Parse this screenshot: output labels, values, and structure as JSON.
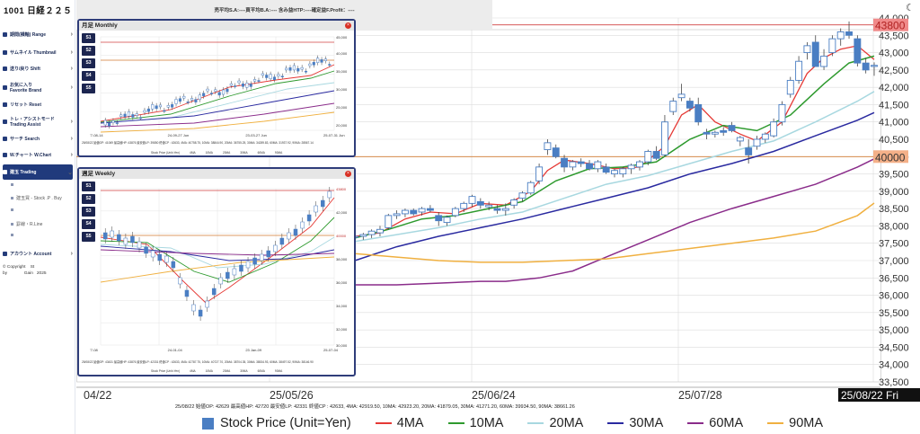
{
  "app": {
    "title": "1001 日経２２５"
  },
  "header": {
    "summary": "売平均S.A:----買平均B.A:---- 含み益HTP:----確定益F.Profit：----",
    "theme_icon": "moon-icon"
  },
  "sidebar": {
    "items": [
      {
        "id": "range",
        "label": "期間(横軸) Range",
        "icon": "range-icon",
        "chevron": "›"
      },
      {
        "id": "thumbnail",
        "label": "サムネイル Thumbnail",
        "icon": "thumbnail-icon",
        "chevron": "›"
      },
      {
        "id": "shift",
        "label": "送り/戻り Shift",
        "icon": "shift-icon",
        "chevron": "›"
      },
      {
        "id": "favorite",
        "label": "お気に入り\nFavorite  Brand",
        "icon": "favorite-icon",
        "chevron": "›"
      },
      {
        "id": "reset",
        "label": "リセット Reset",
        "icon": "reset-icon",
        "chevron": ""
      },
      {
        "id": "trade-assist",
        "label": "トレ・アシストモード\nTrading Assist",
        "icon": "assist-icon",
        "chevron": "›"
      },
      {
        "id": "search",
        "label": "サーチ Search",
        "icon": "search-icon",
        "chevron": "›"
      },
      {
        "id": "wchart",
        "label": "W.チャート W.Chart",
        "icon": "chart-icon",
        "chevron": "›"
      },
      {
        "id": "trading",
        "label": "建玉 Trading",
        "icon": "trading-icon",
        "chevron": "⌄"
      },
      {
        "id": "account",
        "label": "アカウント Account",
        "icon": "account-icon",
        "chevron": "›"
      }
    ],
    "sub_items": [
      {
        "label": ""
      },
      {
        "label": "建玉買 - Stock .P . Buy"
      },
      {
        "label": ""
      },
      {
        "label": "罫線・R.Line"
      },
      {
        "label": ""
      }
    ],
    "copyright": "© Copyright    St\nby              Gain   2025"
  },
  "main_chart": {
    "footer_text": "25/08/22 始値OP: 42629  最高値HP:  42720 最安値LP:  42331  終値CP :  42633, 4MA: 42919.50, 10MA: 42923.20, 20MA: 41879.05, 30MA: 41271.20, 60MA: 39934.50, 90MA: 38661.26",
    "current_date": "25/08/22 Fri",
    "price_marker": "43800",
    "level_marker": "40000"
  },
  "panels": {
    "monthly": {
      "title": "月足 Monthly",
      "buttons": [
        "S1",
        "S2",
        "S3",
        "S4",
        "S5"
      ],
      "meta": "25/08/22 始値OP: 41069  最高値HP:  43876 最安値LP:  39850  終値CP :  42633, 4MA: 40758.75, 10MA: 38844.90, 20MA: 36755.25, 30MA: 34289.83, 60MA: 31937.92, 90MA: 28567.14",
      "x_labels": [
        "'7-08-14",
        "24-09-27 Jun",
        "23-03-27 Jun",
        "25-07-31 Jun"
      ],
      "y_labels": [
        "45,000",
        "40,000",
        "35,000",
        "30,000",
        "25,000",
        "20,000"
      ]
    },
    "weekly": {
      "title": "週足 Weekly",
      "buttons": [
        "S1",
        "S2",
        "S3",
        "S4",
        "S5"
      ],
      "meta": "25/08/22 始値OP: 43431  最高値HP:  43876 最安値LP:  42331  終値CP :  42633, 4MA: 42787.75, 10MA: 40727.70, 20MA: 38704.35, 30MA: 38534.93, 60MA: 38497.52, 90MA: 38146.90",
      "x_labels": [
        "'7-08",
        "24-01-04",
        "23 Jan-09",
        "25-07-04"
      ],
      "y_labels": [
        "43800",
        "42,000",
        "40000",
        "38,000",
        "36,000",
        "34,000",
        "32,000",
        "30,000"
      ]
    }
  },
  "legend": [
    {
      "label": "Stock Price (Unit=Yen)",
      "type": "box",
      "color": "#4a7ec3"
    },
    {
      "label": "4MA",
      "type": "line",
      "color": "#e53935"
    },
    {
      "label": "10MA",
      "type": "line",
      "color": "#2e9a2e"
    },
    {
      "label": "20MA",
      "type": "line",
      "color": "#a8d8e0"
    },
    {
      "label": "30MA",
      "type": "line",
      "color": "#2a2aa0"
    },
    {
      "label": "60MA",
      "type": "line",
      "color": "#8a2c8a"
    },
    {
      "label": "90MA",
      "type": "line",
      "color": "#f0b040"
    }
  ],
  "mini_legend": [
    "Stock Price (Unit=Yen)",
    "4MA",
    "10MA",
    "20MA",
    "30MA",
    "60MA",
    "90MA"
  ],
  "chart_data": {
    "type": "candlestick",
    "x_tick_labels": [
      "04/22",
      "25/05/26",
      "25/06/24",
      "25/07/28"
    ],
    "y_tick_labels": [
      "33,500",
      "34,000",
      "34,500",
      "35,000",
      "35,500",
      "36,000",
      "36,500",
      "37,000",
      "37,500",
      "38,000",
      "38,500",
      "39,000",
      "39,500",
      "40,000",
      "40,500",
      "41,000",
      "41,500",
      "42,000",
      "42,500",
      "43,000",
      "43,500",
      "44,000"
    ],
    "ylim": [
      33500,
      44000
    ],
    "reference_lines": [
      43800,
      40000
    ],
    "candles": [
      [
        37700,
        37800,
        37600,
        37700
      ],
      [
        37700,
        37800,
        37600,
        37750
      ],
      [
        37750,
        37900,
        37650,
        37850
      ],
      [
        37800,
        38000,
        37700,
        37900
      ],
      [
        37950,
        38350,
        37900,
        38300
      ],
      [
        38300,
        38450,
        38200,
        38350
      ],
      [
        38350,
        38500,
        38250,
        38450
      ],
      [
        38450,
        38500,
        38300,
        38350
      ],
      [
        38400,
        38550,
        38300,
        38500
      ],
      [
        38500,
        38600,
        38400,
        38450
      ],
      [
        38300,
        38400,
        38000,
        38150
      ],
      [
        38100,
        38300,
        38000,
        38250
      ],
      [
        38300,
        38550,
        38250,
        38500
      ],
      [
        38500,
        38700,
        38400,
        38650
      ],
      [
        38650,
        38900,
        38550,
        38850
      ],
      [
        38700,
        38800,
        38500,
        38600
      ],
      [
        38550,
        38700,
        38450,
        38600
      ],
      [
        38500,
        38600,
        38350,
        38450
      ],
      [
        38450,
        38650,
        38300,
        38500
      ],
      [
        38600,
        38800,
        38500,
        38750
      ],
      [
        38800,
        39000,
        38700,
        38950
      ],
      [
        38950,
        39300,
        38900,
        39250
      ],
      [
        39300,
        39800,
        39200,
        39700
      ],
      [
        40200,
        40500,
        40050,
        40400
      ],
      [
        40250,
        40350,
        39950,
        40000
      ],
      [
        39950,
        40050,
        39550,
        39700
      ],
      [
        39700,
        39900,
        39600,
        39850
      ],
      [
        39850,
        39950,
        39700,
        39800
      ],
      [
        39800,
        39900,
        39600,
        39650
      ],
      [
        39650,
        39900,
        39550,
        39850
      ],
      [
        39700,
        39800,
        39500,
        39550
      ],
      [
        39500,
        39650,
        39400,
        39600
      ],
      [
        39500,
        39700,
        39400,
        39650
      ],
      [
        39650,
        39800,
        39500,
        39750
      ],
      [
        39700,
        39900,
        39600,
        39850
      ],
      [
        39850,
        40200,
        39750,
        40150
      ],
      [
        40150,
        40300,
        39900,
        39950
      ],
      [
        40050,
        41200,
        40000,
        41000
      ],
      [
        41300,
        41700,
        41200,
        41600
      ],
      [
        41700,
        42100,
        41600,
        41800
      ],
      [
        41600,
        41700,
        41300,
        41400
      ],
      [
        41500,
        41700,
        40900,
        41000
      ],
      [
        40700,
        40800,
        40500,
        40650
      ],
      [
        40650,
        40750,
        40550,
        40700
      ],
      [
        40750,
        40850,
        40600,
        40700
      ],
      [
        40900,
        41000,
        40700,
        40750
      ],
      [
        40450,
        40600,
        40300,
        40550
      ],
      [
        40250,
        40500,
        39800,
        40050
      ],
      [
        40300,
        40600,
        40200,
        40500
      ],
      [
        40500,
        40700,
        40400,
        40650
      ],
      [
        40600,
        41100,
        40550,
        41000
      ],
      [
        41000,
        41600,
        40900,
        41500
      ],
      [
        41800,
        42300,
        41700,
        42200
      ],
      [
        42200,
        42900,
        42100,
        42750
      ],
      [
        43000,
        43300,
        42800,
        43200
      ],
      [
        43300,
        43500,
        42700,
        42600
      ],
      [
        42600,
        43100,
        42500,
        42900
      ],
      [
        43000,
        43500,
        42900,
        43400
      ],
      [
        43400,
        43700,
        43200,
        43600
      ],
      [
        43600,
        43900,
        43400,
        43500
      ],
      [
        43400,
        43500,
        42600,
        42700
      ],
      [
        42700,
        42850,
        42400,
        42500
      ],
      [
        42629,
        42720,
        42331,
        42633
      ]
    ],
    "ma_series": [
      {
        "name": "4MA",
        "color": "#e53935",
        "values": [
          [
            0,
            37700
          ],
          [
            3,
            37800
          ],
          [
            6,
            38200
          ],
          [
            9,
            38400
          ],
          [
            12,
            38350
          ],
          [
            15,
            38650
          ],
          [
            18,
            38600
          ],
          [
            21,
            39000
          ],
          [
            23,
            39600
          ],
          [
            25,
            39900
          ],
          [
            28,
            39800
          ],
          [
            31,
            39650
          ],
          [
            34,
            39700
          ],
          [
            37,
            40300
          ],
          [
            39,
            41200
          ],
          [
            41,
            41500
          ],
          [
            43,
            41000
          ],
          [
            46,
            40650
          ],
          [
            48,
            40450
          ],
          [
            51,
            41000
          ],
          [
            54,
            42400
          ],
          [
            56,
            42850
          ],
          [
            58,
            43100
          ],
          [
            60,
            43200
          ],
          [
            62,
            42800
          ]
        ]
      },
      {
        "name": "10MA",
        "color": "#2e9a2e",
        "values": [
          [
            0,
            37650
          ],
          [
            4,
            37900
          ],
          [
            8,
            38200
          ],
          [
            12,
            38300
          ],
          [
            16,
            38500
          ],
          [
            20,
            38700
          ],
          [
            24,
            39300
          ],
          [
            28,
            39650
          ],
          [
            32,
            39700
          ],
          [
            36,
            39850
          ],
          [
            40,
            40500
          ],
          [
            44,
            40900
          ],
          [
            48,
            40750
          ],
          [
            52,
            41200
          ],
          [
            56,
            42100
          ],
          [
            59,
            42700
          ],
          [
            62,
            42900
          ]
        ]
      },
      {
        "name": "20MA",
        "color": "#a8d8e0",
        "values": [
          [
            0,
            37550
          ],
          [
            5,
            37750
          ],
          [
            10,
            37950
          ],
          [
            15,
            38200
          ],
          [
            20,
            38400
          ],
          [
            25,
            38800
          ],
          [
            30,
            39200
          ],
          [
            35,
            39450
          ],
          [
            40,
            39800
          ],
          [
            45,
            40150
          ],
          [
            50,
            40450
          ],
          [
            55,
            41000
          ],
          [
            60,
            41600
          ],
          [
            62,
            41880
          ]
        ]
      },
      {
        "name": "30MA",
        "color": "#2a2aa0",
        "values": [
          [
            0,
            37000
          ],
          [
            5,
            37400
          ],
          [
            10,
            37700
          ],
          [
            15,
            37950
          ],
          [
            20,
            38200
          ],
          [
            25,
            38500
          ],
          [
            30,
            38800
          ],
          [
            35,
            39100
          ],
          [
            40,
            39500
          ],
          [
            45,
            39800
          ],
          [
            50,
            40150
          ],
          [
            55,
            40600
          ],
          [
            60,
            41050
          ],
          [
            62,
            41270
          ]
        ]
      },
      {
        "name": "60MA",
        "color": "#8a2c8a",
        "values": [
          [
            0,
            36300
          ],
          [
            5,
            36300
          ],
          [
            10,
            36350
          ],
          [
            15,
            36400
          ],
          [
            18,
            36400
          ],
          [
            22,
            36500
          ],
          [
            26,
            36700
          ],
          [
            30,
            37100
          ],
          [
            35,
            37600
          ],
          [
            40,
            38100
          ],
          [
            45,
            38500
          ],
          [
            50,
            38850
          ],
          [
            55,
            39200
          ],
          [
            60,
            39700
          ],
          [
            62,
            39935
          ]
        ]
      },
      {
        "name": "90MA",
        "color": "#f0b040",
        "values": [
          [
            0,
            37200
          ],
          [
            5,
            37100
          ],
          [
            10,
            37000
          ],
          [
            15,
            36950
          ],
          [
            20,
            36950
          ],
          [
            25,
            37000
          ],
          [
            30,
            37050
          ],
          [
            35,
            37200
          ],
          [
            40,
            37350
          ],
          [
            45,
            37500
          ],
          [
            50,
            37650
          ],
          [
            55,
            37850
          ],
          [
            60,
            38300
          ],
          [
            62,
            38660
          ]
        ]
      }
    ]
  }
}
